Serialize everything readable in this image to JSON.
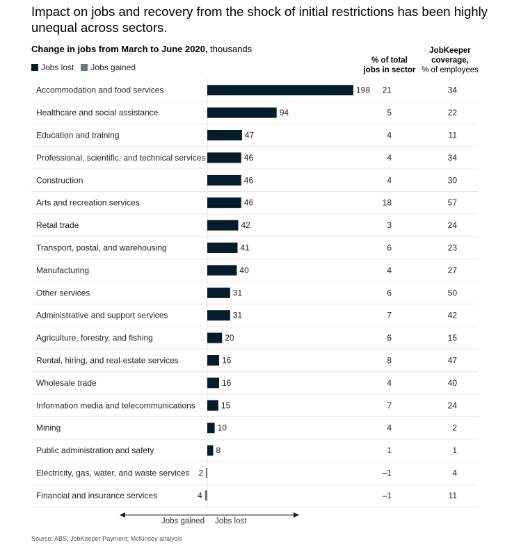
{
  "title": "Impact on jobs and recovery from the shock of initial restrictions has been highly unequal across sectors.",
  "subtitle_bold": "Change in jobs from March to June 2020,",
  "subtitle_rest": " thousands",
  "legend": [
    {
      "label": "Jobs lost",
      "color": "#051c2c"
    },
    {
      "label": "Jobs gained",
      "color": "#6b7880"
    }
  ],
  "col_pct_header": {
    "line1": "% of total",
    "line2": "jobs in sector"
  },
  "col_jk_header": {
    "line1": "JobKeeper",
    "line2": "coverage,",
    "line3": "% of employees"
  },
  "axis_left_label": "Jobs gained",
  "axis_right_label": "Jobs lost",
  "source": "Source: ABS; JobKeeper Payment; McKinsey analysis",
  "chart_data": {
    "type": "bar",
    "orientation": "horizontal",
    "categories": [
      "Accommodation and food services",
      "Healthcare and social assistance",
      "Education and training",
      "Professional, scientific, and technical services",
      "Construction",
      "Arts and recreation services",
      "Retail trade",
      "Transport, postal, and warehousing",
      "Manufacturing",
      "Other services",
      "Administrative and support services",
      "Agriculture, forestry, and fishing",
      "Rental, hiring, and real-estate services",
      "Wholesale trade",
      "Information media and telecommunications",
      "Mining",
      "Public administration and safety",
      "Electricity, gas, water, and waste services",
      "Financial and insurance services"
    ],
    "series": [
      {
        "name": "Jobs lost",
        "values": [
          198,
          94,
          47,
          46,
          46,
          46,
          42,
          41,
          40,
          31,
          31,
          20,
          16,
          16,
          15,
          10,
          8,
          null,
          null
        ]
      },
      {
        "name": "Jobs gained",
        "values": [
          null,
          null,
          null,
          null,
          null,
          null,
          null,
          null,
          null,
          null,
          null,
          null,
          null,
          null,
          null,
          null,
          null,
          2,
          4
        ]
      }
    ],
    "pct_total_jobs": [
      "21",
      "5",
      "4",
      "4",
      "4",
      "18",
      "3",
      "6",
      "4",
      "6",
      "7",
      "6",
      "8",
      "4",
      "7",
      "4",
      "1",
      "–1",
      "–1"
    ],
    "jobkeeper_coverage": [
      "34",
      "22",
      "11",
      "34",
      "30",
      "57",
      "24",
      "23",
      "27",
      "50",
      "42",
      "15",
      "47",
      "40",
      "24",
      "2",
      "1",
      "4",
      "11"
    ],
    "xlim": [
      -4,
      198
    ]
  }
}
